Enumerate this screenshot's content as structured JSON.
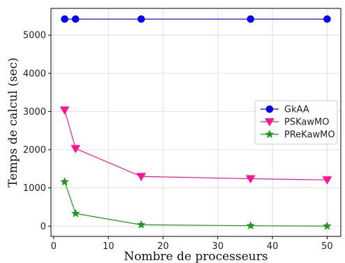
{
  "chart_data": {
    "type": "line",
    "xlabel": "Nombre de processeurs",
    "ylabel": "Temps de calcul (sec)",
    "xlim": [
      -0.5,
      52.5
    ],
    "ylim": [
      -270,
      5700
    ],
    "x_ticks": [
      0,
      10,
      20,
      30,
      40,
      50
    ],
    "y_ticks": [
      0,
      1000,
      2000,
      3000,
      4000,
      5000
    ],
    "grid": true,
    "legend_position": "center-right",
    "series": [
      {
        "name": "GkAA",
        "color": "#0000ff",
        "marker": "circle",
        "x": [
          2,
          4,
          16,
          36,
          50
        ],
        "y": [
          5420,
          5420,
          5420,
          5420,
          5420
        ]
      },
      {
        "name": "PSKawMO",
        "color": "#ff1493",
        "marker": "triangle-down",
        "x": [
          2,
          4,
          16,
          36,
          50
        ],
        "y": [
          3040,
          2030,
          1300,
          1240,
          1210
        ]
      },
      {
        "name": "PReKawMO",
        "color": "#1a9a1a",
        "marker": "star",
        "x": [
          2,
          4,
          16,
          36,
          50
        ],
        "y": [
          1160,
          330,
          35,
          10,
          0
        ]
      }
    ]
  }
}
